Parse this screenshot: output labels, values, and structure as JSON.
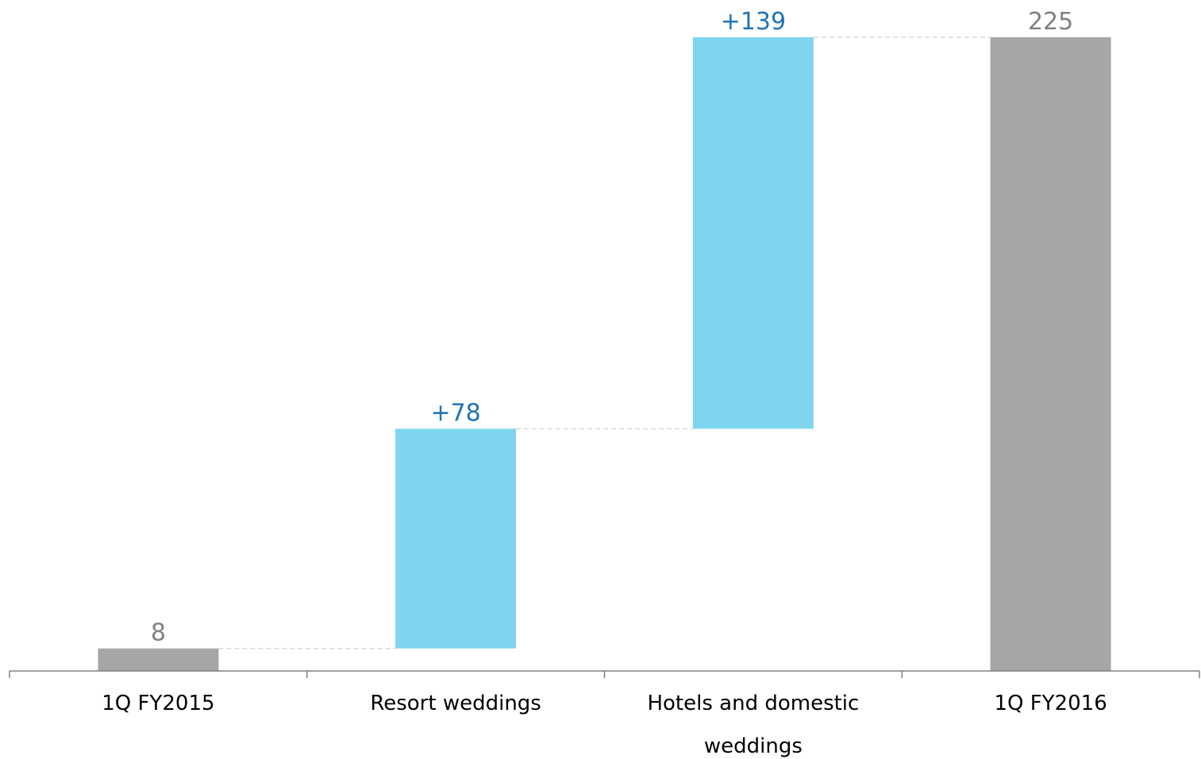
{
  "chart_data": {
    "type": "bar",
    "subtype": "waterfall",
    "categories": [
      "1Q FY2015",
      "Resort weddings",
      "Hotels and domestic weddings",
      "1Q FY2016"
    ],
    "category_lines": [
      [
        "1Q FY2015"
      ],
      [
        "Resort weddings"
      ],
      [
        "Hotels and domestic",
        "weddings"
      ],
      [
        "1Q FY2016"
      ]
    ],
    "steps": [
      {
        "category": "1Q FY2015",
        "kind": "total",
        "start": 0,
        "end": 8,
        "label": "8"
      },
      {
        "category": "Resort weddings",
        "kind": "increase",
        "start": 8,
        "end": 86,
        "label": "+78"
      },
      {
        "category": "Hotels and domestic weddings",
        "kind": "increase",
        "start": 86,
        "end": 225,
        "label": "+139"
      },
      {
        "category": "1Q FY2016",
        "kind": "total",
        "start": 0,
        "end": 225,
        "label": "225"
      }
    ],
    "ylim": [
      0,
      225
    ],
    "grid": false,
    "connectors": true,
    "colors": {
      "total": "#a6a6a6",
      "increase": "#7fd5ee",
      "total_label": "#808080",
      "increase_label": "#1f74b8",
      "connector": "#d9d9d9",
      "axis": "#808080"
    }
  }
}
